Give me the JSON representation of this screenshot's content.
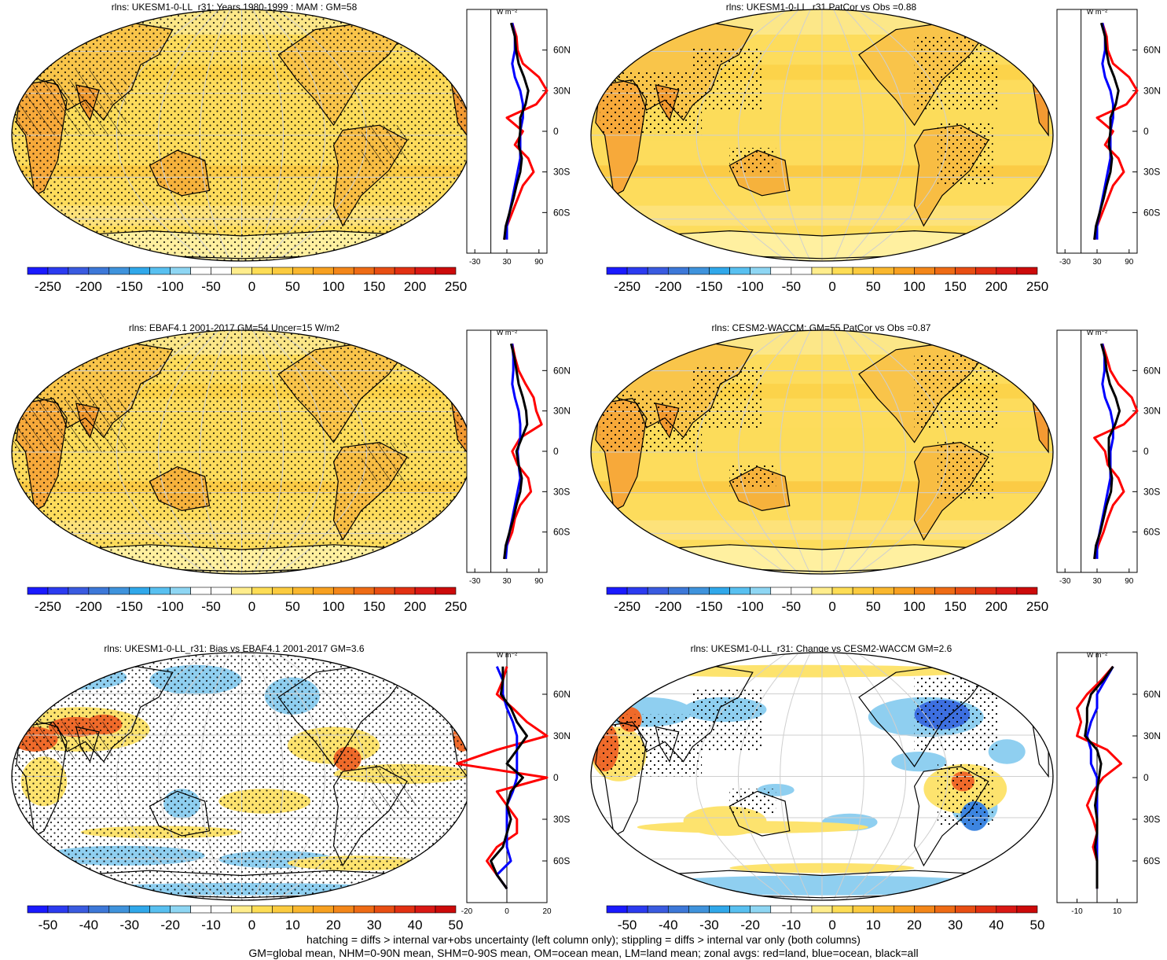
{
  "panels": [
    {
      "title": "rlns: UKESM1-0-LL_r31: Years 1980-1999 : MAM : GM=58",
      "kind": "abs",
      "hatch": true,
      "stipple": "dense"
    },
    {
      "title": "rlns: UKESM1-0-LL_r31 PatCor vs Obs =0.88",
      "kind": "abs",
      "hatch": false,
      "stipple": "light"
    },
    {
      "title": "rlns: EBAF4.1 2001-2017 GM=54 Uncer=15 W/m2",
      "kind": "abs",
      "hatch": true,
      "stipple": "dense"
    },
    {
      "title": "rlns: CESM2-WACCM: GM=55 PatCor vs Obs =0.87",
      "kind": "abs",
      "hatch": false,
      "stipple": "light"
    },
    {
      "title": "rlns: UKESM1-0-LL_r31: Bias vs EBAF4.1 2001-2017 GM=3.6",
      "kind": "diff",
      "hatch": true,
      "stipple": "dense"
    },
    {
      "title": "rlns: UKESM1-0-LL_r31: Change vs CESM2-WACCM GM=2.6",
      "kind": "diff",
      "hatch": false,
      "stipple": "light"
    }
  ],
  "colorbars": {
    "abs": {
      "labels": [
        "-250",
        "-200",
        "-150",
        "-100",
        "-50",
        "0",
        "50",
        "100",
        "150",
        "200",
        "250"
      ],
      "colors": [
        "#1a1aff",
        "#2b3bf0",
        "#3a5be0",
        "#3d78d8",
        "#3f93dc",
        "#30a8ea",
        "#58c0f0",
        "#8ed6f3",
        "#ffffff",
        "#ffffff",
        "#ffed8c",
        "#fddd55",
        "#fbcb3f",
        "#f9b72e",
        "#f7a020",
        "#f38619",
        "#ee6b15",
        "#e84e13",
        "#e23012",
        "#d91814",
        "#cc0a0a"
      ]
    },
    "diff": {
      "labels": [
        "-50",
        "-40",
        "-30",
        "-20",
        "-10",
        "0",
        "10",
        "20",
        "30",
        "40",
        "50"
      ],
      "colors": [
        "#1a1aff",
        "#2b3bf0",
        "#3a5be0",
        "#3d78d8",
        "#3f93dc",
        "#30a8ea",
        "#58c0f0",
        "#8ed6f3",
        "#ffffff",
        "#ffffff",
        "#ffed8c",
        "#fddd55",
        "#fbcb3f",
        "#f9b72e",
        "#f7a020",
        "#f38619",
        "#ee6b15",
        "#e84e13",
        "#e23012",
        "#d91814",
        "#cc0a0a"
      ]
    }
  },
  "zonal_unit": "W m⁻²",
  "lat_ticks": [
    "60N",
    "30N",
    "0",
    "30S",
    "60S"
  ],
  "zonal_x": {
    "abs": {
      "ticks": [
        "-30",
        "30",
        "90"
      ],
      "xlim": [
        -45,
        105
      ]
    },
    "diff": [
      {
        "ticks": [
          "-20",
          "0",
          "20"
        ],
        "xlim": [
          -20,
          20
        ]
      },
      {
        "ticks": [
          "-10",
          "10"
        ],
        "xlim": [
          -20,
          20
        ]
      }
    ]
  },
  "legend_colors": {
    "land": "#ff0000",
    "ocean": "#0000ff",
    "all": "#000000"
  },
  "footer": [
    "hatching = diffs > internal var+obs uncertainty (left column only); stippling = diffs > internal var only (both columns)",
    "GM=global mean, NHM=0-90N mean, SHM=0-90S mean, OM=ocean mean, LM=land mean; zonal avgs: red=land, blue=ocean, black=all"
  ],
  "chart_data": [
    {
      "type": "heatmap",
      "title": "rlns: UKESM1-0-LL_r31: Years 1980-1999 : MAM : GM=58",
      "colorbar": [
        -250,
        -200,
        -150,
        -100,
        -50,
        0,
        50,
        100,
        150,
        200,
        250
      ],
      "zonal": {
        "lat": [
          80,
          70,
          60,
          50,
          40,
          30,
          20,
          10,
          0,
          -10,
          -20,
          -30,
          -40,
          -50,
          -60,
          -70,
          -80
        ],
        "land": [
          40,
          48,
          50,
          60,
          90,
          105,
          85,
          30,
          60,
          45,
          70,
          80,
          60,
          50,
          40,
          30,
          25
        ],
        "ocean": [
          40,
          45,
          45,
          40,
          45,
          55,
          60,
          60,
          55,
          55,
          55,
          50,
          45,
          40,
          35,
          30,
          30
        ],
        "all": [
          38,
          45,
          47,
          52,
          62,
          70,
          65,
          55,
          55,
          52,
          58,
          55,
          48,
          42,
          35,
          28,
          25
        ]
      }
    },
    {
      "type": "heatmap",
      "title": "rlns: UKESM1-0-LL_r31 PatCor vs Obs =0.88",
      "colorbar": [
        -250,
        -200,
        -150,
        -100,
        -50,
        0,
        50,
        100,
        150,
        200,
        250
      ],
      "zonal": {
        "lat": [
          80,
          70,
          60,
          50,
          40,
          30,
          20,
          10,
          0,
          -10,
          -20,
          -30,
          -40,
          -50,
          -60,
          -70,
          -80
        ],
        "land": [
          40,
          48,
          50,
          60,
          90,
          105,
          85,
          30,
          60,
          45,
          70,
          80,
          60,
          50,
          40,
          30,
          25
        ],
        "ocean": [
          40,
          45,
          45,
          40,
          45,
          55,
          60,
          60,
          55,
          55,
          55,
          50,
          45,
          40,
          35,
          30,
          30
        ],
        "all": [
          38,
          45,
          47,
          52,
          62,
          70,
          65,
          55,
          55,
          52,
          58,
          55,
          48,
          42,
          35,
          28,
          25
        ]
      }
    },
    {
      "type": "heatmap",
      "title": "rlns: EBAF4.1 2001-2017 GM=54 Uncer=15 W/m2",
      "colorbar": [
        -250,
        -200,
        -150,
        -100,
        -50,
        0,
        50,
        100,
        150,
        200,
        250
      ],
      "zonal": {
        "lat": [
          80,
          70,
          60,
          50,
          40,
          30,
          20,
          10,
          0,
          -10,
          -20,
          -30,
          -40,
          -50,
          -60,
          -70,
          -80
        ],
        "land": [
          40,
          45,
          52,
          65,
          80,
          85,
          95,
          55,
          40,
          50,
          70,
          75,
          55,
          45,
          40,
          30,
          25
        ],
        "ocean": [
          40,
          42,
          42,
          40,
          45,
          52,
          55,
          55,
          50,
          52,
          55,
          50,
          45,
          40,
          35,
          30,
          28
        ],
        "all": [
          38,
          44,
          48,
          52,
          60,
          66,
          68,
          58,
          48,
          52,
          58,
          55,
          48,
          42,
          35,
          28,
          25
        ]
      }
    },
    {
      "type": "heatmap",
      "title": "rlns: CESM2-WACCM: GM=55 PatCor vs Obs =0.87",
      "colorbar": [
        -250,
        -200,
        -150,
        -100,
        -50,
        0,
        50,
        100,
        150,
        200,
        250
      ],
      "zonal": {
        "lat": [
          80,
          70,
          60,
          50,
          40,
          30,
          20,
          10,
          0,
          -10,
          -20,
          -30,
          -40,
          -50,
          -60,
          -70,
          -80
        ],
        "land": [
          40,
          48,
          55,
          70,
          95,
          105,
          80,
          25,
          45,
          50,
          70,
          80,
          60,
          50,
          42,
          32,
          25
        ],
        "ocean": [
          40,
          44,
          44,
          40,
          45,
          55,
          60,
          60,
          55,
          55,
          55,
          50,
          45,
          40,
          35,
          30,
          30
        ],
        "all": [
          38,
          45,
          48,
          54,
          65,
          72,
          64,
          52,
          52,
          53,
          58,
          56,
          48,
          42,
          36,
          28,
          25
        ]
      }
    },
    {
      "type": "heatmap",
      "title": "rlns: UKESM1-0-LL_r31: Bias vs EBAF4.1 2001-2017 GM=3.6",
      "colorbar": [
        -50,
        -40,
        -30,
        -20,
        -10,
        0,
        10,
        20,
        30,
        40,
        50
      ],
      "zonal": {
        "lat": [
          80,
          70,
          60,
          50,
          40,
          30,
          20,
          10,
          0,
          -10,
          -20,
          -30,
          -40,
          -50,
          -60,
          -70,
          -80
        ],
        "land": [
          0,
          -2,
          -5,
          3,
          10,
          20,
          -5,
          -25,
          20,
          -5,
          0,
          5,
          5,
          -5,
          -10,
          -5,
          0
        ],
        "ocean": [
          -5,
          -2,
          -2,
          0,
          3,
          5,
          5,
          5,
          5,
          3,
          0,
          0,
          0,
          0,
          2,
          -5,
          0
        ],
        "all": [
          -2,
          -2,
          -3,
          2,
          5,
          10,
          5,
          0,
          8,
          2,
          0,
          2,
          0,
          -2,
          -8,
          -5,
          0
        ]
      }
    },
    {
      "type": "heatmap",
      "title": "rlns: UKESM1-0-LL_r31: Change vs CESM2-WACCM GM=2.6",
      "colorbar": [
        -50,
        -40,
        -30,
        -20,
        -10,
        0,
        10,
        20,
        30,
        40,
        50
      ],
      "zonal": {
        "lat": [
          80,
          70,
          60,
          50,
          40,
          30,
          20,
          10,
          0,
          -10,
          -20,
          -30,
          -40,
          -50,
          -60,
          -70,
          -80
        ],
        "land": [
          8,
          2,
          -5,
          -10,
          -8,
          -10,
          5,
          12,
          3,
          -2,
          -5,
          -2,
          0,
          -2,
          0,
          0,
          0
        ],
        "ocean": [
          8,
          4,
          0,
          0,
          -3,
          -5,
          -3,
          -3,
          0,
          0,
          0,
          0,
          0,
          0,
          0,
          0,
          0
        ],
        "all": [
          8,
          3,
          -3,
          -5,
          -5,
          -6,
          0,
          2,
          1,
          0,
          -1,
          0,
          0,
          -1,
          0,
          0,
          0
        ]
      }
    }
  ]
}
